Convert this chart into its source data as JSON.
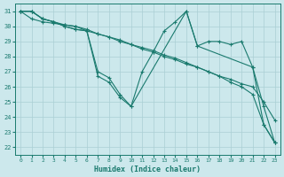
{
  "xlabel": "Humidex (Indice chaleur)",
  "xlim": [
    -0.5,
    23.5
  ],
  "ylim": [
    21.5,
    31.5
  ],
  "yticks": [
    22,
    23,
    24,
    25,
    26,
    27,
    28,
    29,
    30,
    31
  ],
  "xticks": [
    0,
    1,
    2,
    3,
    4,
    5,
    6,
    7,
    8,
    9,
    10,
    11,
    12,
    13,
    14,
    15,
    16,
    17,
    18,
    19,
    20,
    21,
    22,
    23
  ],
  "bg_color": "#cce8ec",
  "grid_color": "#aacfd4",
  "line_color": "#1a7a6e",
  "line1": [
    [
      0,
      31.0
    ],
    [
      1,
      31.0
    ],
    [
      2,
      30.5
    ],
    [
      3,
      30.3
    ],
    [
      4,
      30.1
    ],
    [
      5,
      30.0
    ],
    [
      6,
      29.7
    ],
    [
      7,
      27.0
    ],
    [
      8,
      26.6
    ],
    [
      9,
      25.5
    ],
    [
      10,
      24.7
    ],
    [
      11,
      27.0
    ],
    [
      12,
      28.3
    ],
    [
      13,
      29.7
    ],
    [
      14,
      30.3
    ],
    [
      15,
      31.0
    ],
    [
      16,
      28.7
    ],
    [
      17,
      29.0
    ],
    [
      18,
      29.0
    ],
    [
      19,
      28.8
    ],
    [
      20,
      29.0
    ],
    [
      21,
      27.3
    ],
    [
      22,
      24.7
    ],
    [
      23,
      22.3
    ]
  ],
  "line2": [
    [
      0,
      31.0
    ],
    [
      1,
      30.5
    ],
    [
      2,
      30.3
    ],
    [
      3,
      30.2
    ],
    [
      4,
      30.1
    ],
    [
      5,
      30.0
    ],
    [
      6,
      29.8
    ],
    [
      7,
      29.5
    ],
    [
      8,
      29.3
    ],
    [
      9,
      29.1
    ],
    [
      10,
      28.8
    ],
    [
      11,
      28.6
    ],
    [
      12,
      28.4
    ],
    [
      13,
      28.1
    ],
    [
      14,
      27.9
    ],
    [
      15,
      27.6
    ],
    [
      16,
      27.3
    ],
    [
      17,
      27.0
    ],
    [
      18,
      26.7
    ],
    [
      19,
      26.5
    ],
    [
      20,
      26.2
    ],
    [
      21,
      26.0
    ],
    [
      22,
      25.0
    ],
    [
      23,
      23.8
    ]
  ],
  "line3": [
    [
      0,
      31.0
    ],
    [
      1,
      31.0
    ],
    [
      2,
      30.5
    ],
    [
      3,
      30.3
    ],
    [
      4,
      30.0
    ],
    [
      5,
      29.8
    ],
    [
      6,
      29.7
    ],
    [
      7,
      29.5
    ],
    [
      8,
      29.3
    ],
    [
      9,
      29.0
    ],
    [
      10,
      28.8
    ],
    [
      11,
      28.5
    ],
    [
      12,
      28.3
    ],
    [
      13,
      28.0
    ],
    [
      14,
      27.8
    ],
    [
      15,
      27.5
    ],
    [
      16,
      27.3
    ],
    [
      17,
      27.0
    ],
    [
      18,
      26.7
    ],
    [
      19,
      26.3
    ],
    [
      20,
      26.0
    ],
    [
      21,
      25.5
    ],
    [
      22,
      23.5
    ],
    [
      23,
      22.3
    ]
  ],
  "line4": [
    [
      0,
      31.0
    ],
    [
      1,
      31.0
    ],
    [
      2,
      30.5
    ],
    [
      3,
      30.3
    ],
    [
      4,
      30.0
    ],
    [
      5,
      29.8
    ],
    [
      6,
      29.7
    ],
    [
      7,
      26.7
    ],
    [
      8,
      26.3
    ],
    [
      9,
      25.3
    ],
    [
      10,
      24.7
    ],
    [
      15,
      31.0
    ],
    [
      16,
      28.7
    ],
    [
      21,
      27.3
    ],
    [
      22,
      23.5
    ],
    [
      23,
      22.3
    ]
  ]
}
